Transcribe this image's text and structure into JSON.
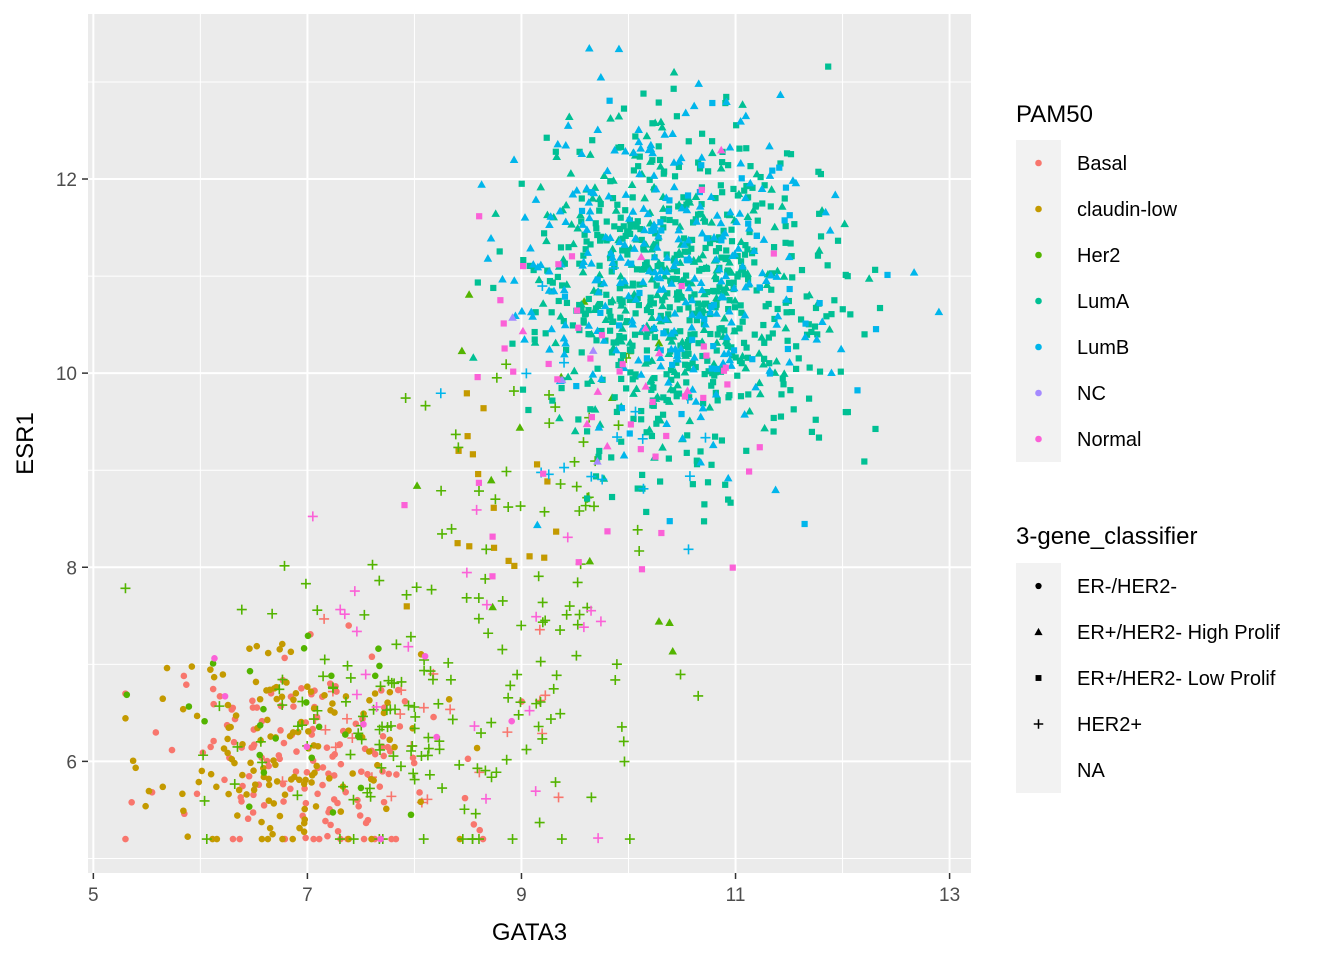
{
  "chart_data": {
    "type": "scatter",
    "title": "",
    "xlabel": "GATA3",
    "ylabel": "ESR1",
    "xlim": [
      4.95,
      13.2
    ],
    "ylim": [
      4.85,
      13.7
    ],
    "x_ticks": [
      5,
      7,
      9,
      11,
      13
    ],
    "y_ticks": [
      6,
      8,
      10,
      12
    ],
    "grid": true,
    "legend_placement": "right",
    "color_legend": {
      "title": "PAM50",
      "entries": [
        {
          "name": "Basal",
          "color": "#F8766D"
        },
        {
          "name": "claudin-low",
          "color": "#C49A00"
        },
        {
          "name": "Her2",
          "color": "#53B400"
        },
        {
          "name": "LumA",
          "color": "#00C094"
        },
        {
          "name": "LumB",
          "color": "#00B6EB"
        },
        {
          "name": "NC",
          "color": "#A58AFF"
        },
        {
          "name": "Normal",
          "color": "#FB61D7"
        }
      ]
    },
    "shape_legend": {
      "title": "3-gene_classifier",
      "entries": [
        {
          "name": "ER-/HER2-",
          "shape": "circle"
        },
        {
          "name": "ER+/HER2- High Prolif",
          "shape": "triangle"
        },
        {
          "name": "ER+/HER2- Low Prolif",
          "shape": "square"
        },
        {
          "name": "HER2+",
          "shape": "plus"
        },
        {
          "name": "NA",
          "shape": "none"
        }
      ]
    },
    "series": [
      {
        "pam50": "Basal",
        "shape": "circle",
        "n": 150,
        "cx": 7.0,
        "cy": 5.95,
        "sx": 0.75,
        "sy": 0.5,
        "seed": 11
      },
      {
        "pam50": "Basal",
        "shape": "plus",
        "n": 25,
        "cx": 8.0,
        "cy": 6.2,
        "sx": 0.7,
        "sy": 0.6,
        "seed": 12
      },
      {
        "pam50": "claudin-low",
        "shape": "circle",
        "n": 140,
        "cx": 6.7,
        "cy": 6.1,
        "sx": 0.7,
        "sy": 0.55,
        "seed": 13
      },
      {
        "pam50": "claudin-low",
        "shape": "square",
        "n": 18,
        "cx": 8.7,
        "cy": 8.8,
        "sx": 0.5,
        "sy": 0.7,
        "seed": 14
      },
      {
        "pam50": "Her2",
        "shape": "plus",
        "n": 140,
        "cx": 8.0,
        "cy": 6.4,
        "sx": 0.9,
        "sy": 0.75,
        "seed": 15
      },
      {
        "pam50": "Her2",
        "shape": "plus",
        "n": 55,
        "cx": 9.2,
        "cy": 8.3,
        "sx": 0.6,
        "sy": 1.0,
        "seed": 16
      },
      {
        "pam50": "Her2",
        "shape": "circle",
        "n": 25,
        "cx": 7.0,
        "cy": 6.3,
        "sx": 0.6,
        "sy": 0.5,
        "seed": 17
      },
      {
        "pam50": "Her2",
        "shape": "triangle",
        "n": 15,
        "cx": 9.3,
        "cy": 8.8,
        "sx": 1.0,
        "sy": 1.3,
        "seed": 18
      },
      {
        "pam50": "LumA",
        "shape": "square",
        "n": 540,
        "cx": 10.5,
        "cy": 10.8,
        "sx": 0.7,
        "sy": 0.85,
        "seed": 19
      },
      {
        "pam50": "LumA",
        "shape": "triangle",
        "n": 230,
        "cx": 10.4,
        "cy": 10.9,
        "sx": 0.65,
        "sy": 0.85,
        "seed": 20
      },
      {
        "pam50": "LumB",
        "shape": "triangle",
        "n": 260,
        "cx": 10.4,
        "cy": 11.0,
        "sx": 0.75,
        "sy": 0.85,
        "seed": 21
      },
      {
        "pam50": "LumB",
        "shape": "square",
        "n": 60,
        "cx": 10.5,
        "cy": 10.8,
        "sx": 0.75,
        "sy": 0.9,
        "seed": 22
      },
      {
        "pam50": "LumB",
        "shape": "plus",
        "n": 18,
        "cx": 9.8,
        "cy": 9.5,
        "sx": 0.6,
        "sy": 0.7,
        "seed": 23
      },
      {
        "pam50": "NC",
        "shape": "triangle",
        "n": 4,
        "cx": 9.5,
        "cy": 10.0,
        "sx": 0.4,
        "sy": 0.5,
        "seed": 24
      },
      {
        "pam50": "Normal",
        "shape": "square",
        "n": 45,
        "cx": 9.8,
        "cy": 9.8,
        "sx": 0.9,
        "sy": 1.0,
        "seed": 25
      },
      {
        "pam50": "Normal",
        "shape": "plus",
        "n": 22,
        "cx": 8.4,
        "cy": 7.2,
        "sx": 0.8,
        "sy": 0.9,
        "seed": 26
      },
      {
        "pam50": "Normal",
        "shape": "circle",
        "n": 8,
        "cx": 7.2,
        "cy": 6.4,
        "sx": 0.9,
        "sy": 0.8,
        "seed": 27
      },
      {
        "pam50": "Normal",
        "shape": "triangle",
        "n": 10,
        "cx": 9.8,
        "cy": 10.5,
        "sx": 0.7,
        "sy": 0.8,
        "seed": 28
      }
    ]
  }
}
